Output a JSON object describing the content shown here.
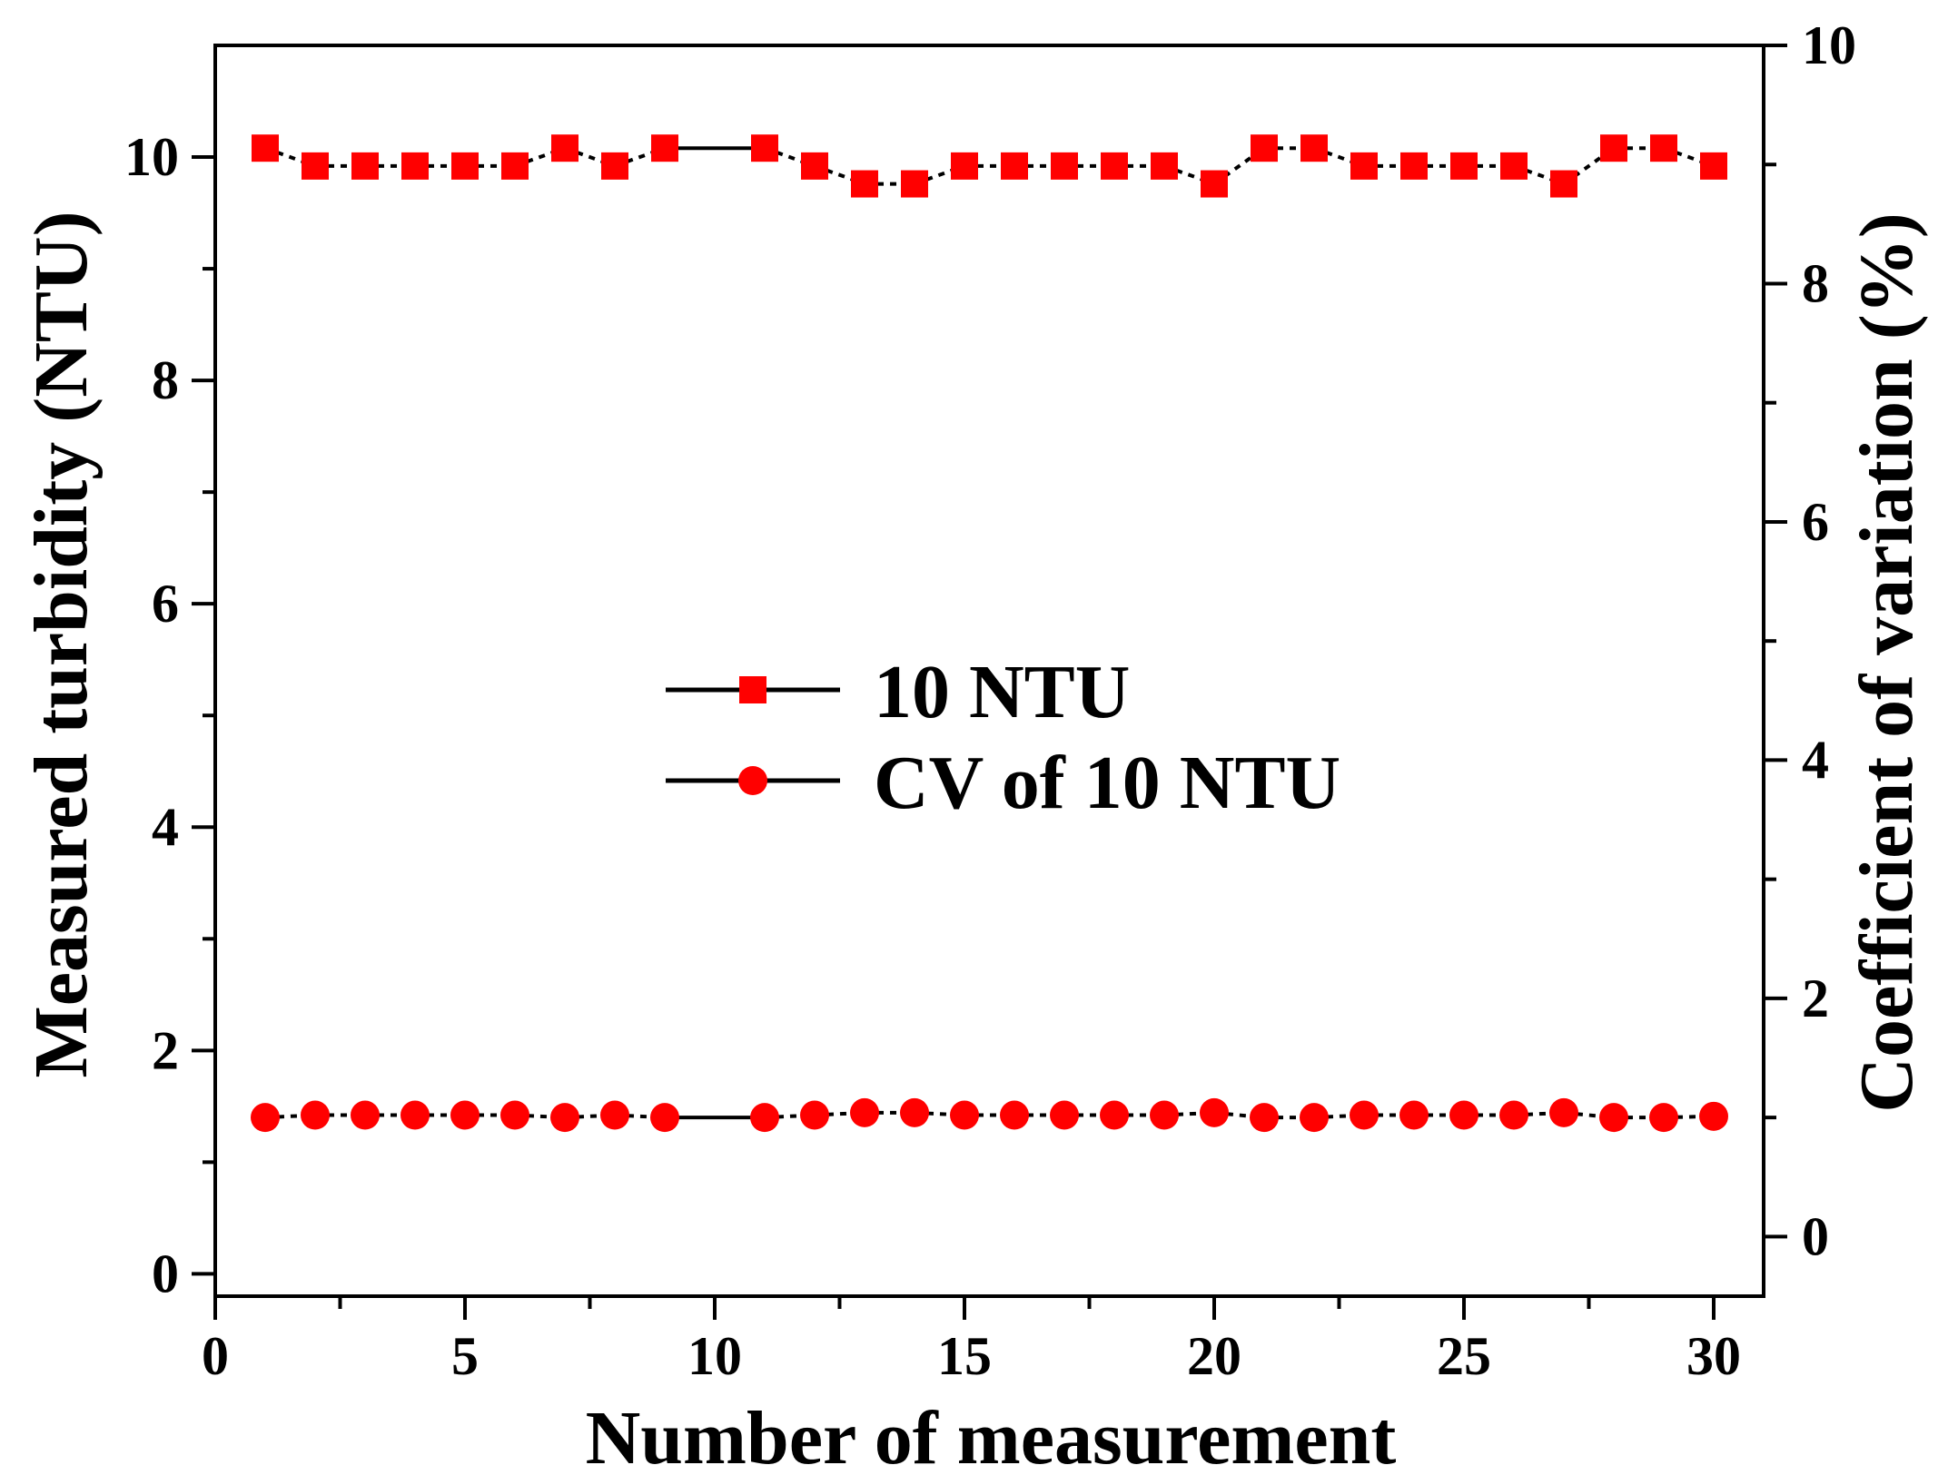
{
  "chart_data": {
    "type": "line",
    "title": "",
    "xlabel": "Number of measurement",
    "ylabel": "Measured turbidity (NTU)",
    "y2label": "Coefficient of variation (%)",
    "xlim": [
      0,
      31
    ],
    "ylim": [
      -0.2,
      11
    ],
    "y2lim": [
      -0.5,
      10
    ],
    "xticks": [
      0,
      5,
      10,
      15,
      20,
      25,
      30
    ],
    "xtick_labels": [
      "0",
      "5",
      "10",
      "15",
      "20",
      "25",
      "30"
    ],
    "yticks": [
      0,
      2,
      4,
      6,
      8,
      10
    ],
    "ytick_labels": [
      "0",
      "2",
      "4",
      "6",
      "8",
      "10"
    ],
    "y2ticks": [
      0,
      2,
      4,
      6,
      8,
      10
    ],
    "y2tick_labels": [
      "0",
      "2",
      "4",
      "6",
      "8",
      "10"
    ],
    "legend_position": "center",
    "grid": false,
    "series": [
      {
        "name": "10 NTU",
        "axis": "left",
        "marker": "square",
        "color": "#ff0000",
        "x": [
          1,
          2,
          3,
          4,
          5,
          6,
          7,
          8,
          9,
          11,
          12,
          13,
          14,
          15,
          16,
          17,
          18,
          19,
          20,
          21,
          22,
          23,
          24,
          25,
          26,
          27,
          28,
          29,
          30
        ],
        "values": [
          10.08,
          9.92,
          9.92,
          9.92,
          9.92,
          9.92,
          10.08,
          9.92,
          10.08,
          10.08,
          9.92,
          9.76,
          9.76,
          9.92,
          9.92,
          9.92,
          9.92,
          9.92,
          9.76,
          10.08,
          10.08,
          9.92,
          9.92,
          9.92,
          9.92,
          9.76,
          10.08,
          10.08,
          9.92
        ]
      },
      {
        "name": "CV of 10 NTU",
        "axis": "right",
        "marker": "circle",
        "color": "#ff0000",
        "x": [
          1,
          2,
          3,
          4,
          5,
          6,
          7,
          8,
          9,
          11,
          12,
          13,
          14,
          15,
          16,
          17,
          18,
          19,
          20,
          21,
          22,
          23,
          24,
          25,
          26,
          27,
          28,
          29,
          30
        ],
        "values": [
          1.0,
          1.02,
          1.02,
          1.02,
          1.02,
          1.02,
          1.0,
          1.02,
          1.0,
          1.0,
          1.02,
          1.04,
          1.04,
          1.02,
          1.02,
          1.02,
          1.02,
          1.02,
          1.04,
          1.0,
          1.0,
          1.02,
          1.02,
          1.02,
          1.02,
          1.04,
          1.0,
          1.0,
          1.01
        ]
      }
    ]
  }
}
